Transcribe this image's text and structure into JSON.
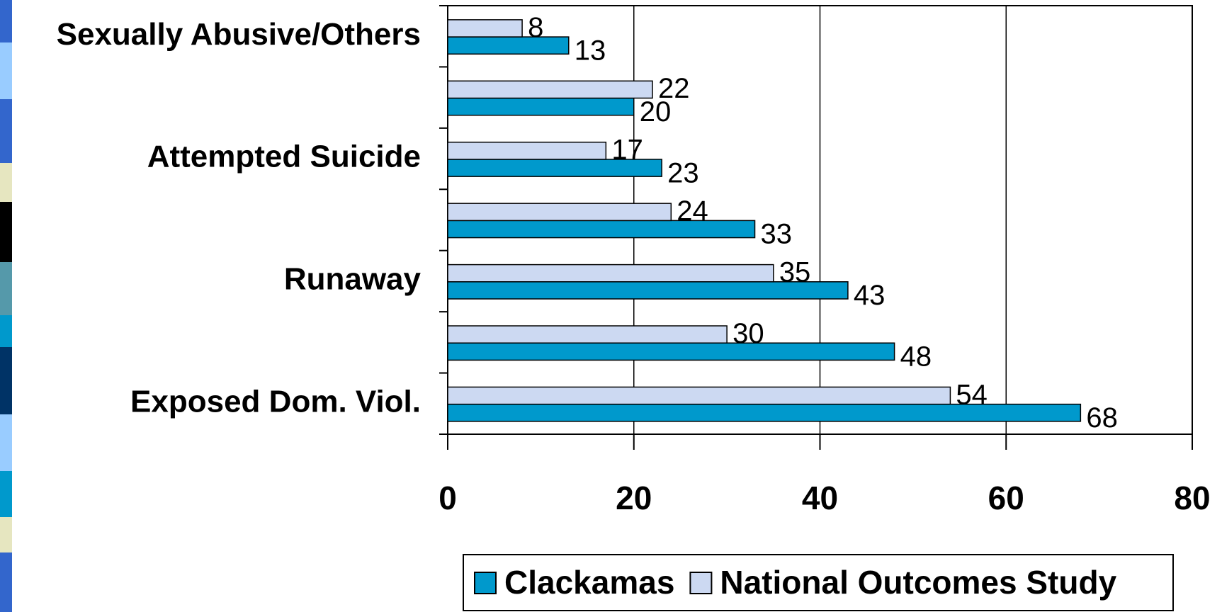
{
  "chart_data": {
    "type": "bar",
    "orientation": "horizontal",
    "categories": [
      "Exposed Dom. Viol.",
      null,
      "Runaway",
      null,
      "Attempted Suicide",
      null,
      "Sexually Abusive/Others"
    ],
    "series": [
      {
        "name": "Clackamas",
        "color": "#0099cc",
        "values": [
          68,
          48,
          43,
          33,
          23,
          20,
          13
        ]
      },
      {
        "name": "National Outcomes Study",
        "color": "#ccd9f2",
        "values": [
          54,
          30,
          35,
          24,
          17,
          22,
          8
        ]
      }
    ],
    "xlim": [
      0,
      80
    ],
    "xticks": [
      0,
      20,
      40,
      60,
      80
    ],
    "grid": true,
    "legend": "bottom"
  }
}
